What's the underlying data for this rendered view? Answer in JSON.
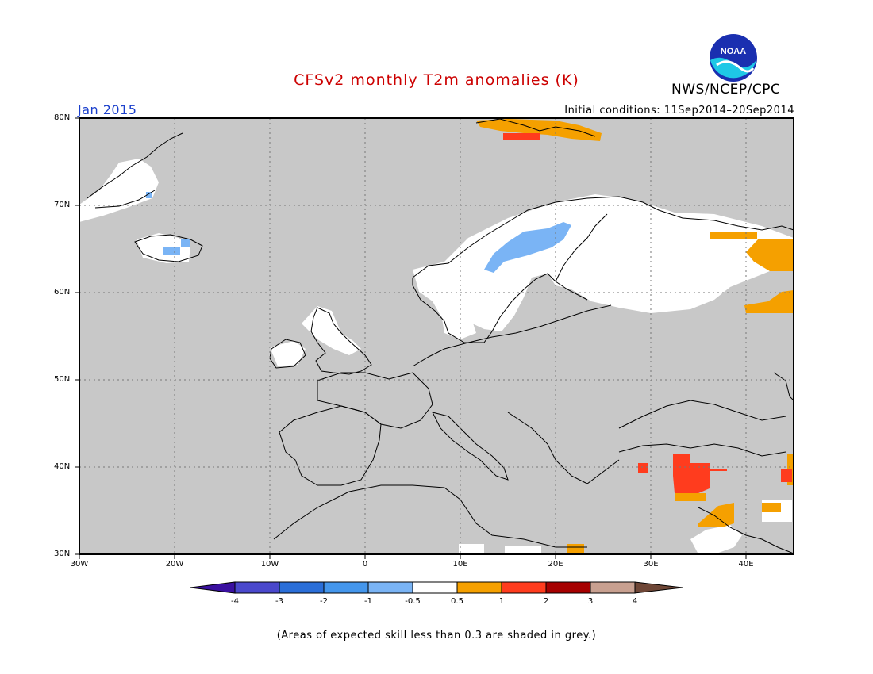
{
  "title": "CFSv2 monthly T2m anomalies (K)",
  "month": "Jan 2015",
  "initial_conditions": "Initial conditions: 11Sep2014–20Sep2014",
  "agency": "NWS/NCEP/CPC",
  "logo_text": "NOAA",
  "footnote": "(Areas of expected skill less than 0.3 are shaded in grey.)",
  "colors": {
    "title": "#cc0000",
    "month": "#1a3fcc",
    "grey_mask": "#c8c8c8",
    "land_outline": "#000000"
  },
  "map": {
    "region": "Europe",
    "lon_range": [
      -30,
      45
    ],
    "lat_range": [
      30,
      80
    ],
    "lat_ticks": [
      "80N",
      "70N",
      "60N",
      "50N",
      "40N",
      "30N"
    ],
    "lon_ticks": [
      "30W",
      "20W",
      "10W",
      "0",
      "10E",
      "20E",
      "30E",
      "40E"
    ],
    "anomaly_regions": [
      {
        "name": "Scandinavia / NW Russia",
        "category": "-0.5 to 0.5",
        "color": "#ffffff"
      },
      {
        "name": "Central Sweden",
        "category": "-1 to -0.5",
        "color": "#7ab4f5"
      },
      {
        "name": "Iceland",
        "category": "-1 to -0.5",
        "color": "#7ab4f5"
      },
      {
        "name": "Svalbard",
        "category": "0.5 to 1",
        "color": "#f5a000"
      },
      {
        "name": "NW Russia (east)",
        "category": "0.5 to 1",
        "color": "#f5a000"
      },
      {
        "name": "Eastern Turkey",
        "category": "1 to 2",
        "color": "#ff3c1e"
      }
    ]
  },
  "colorbar": {
    "labels": [
      "-4",
      "-3",
      "-2",
      "-1",
      "-0.5",
      "0.5",
      "1",
      "2",
      "3",
      "4"
    ],
    "colors": [
      "#3a10a0",
      "#4a48cc",
      "#2a6ed8",
      "#4496ec",
      "#7ab4f5",
      "#ffffff",
      "#f5a000",
      "#ff3c1e",
      "#a60000",
      "#c8a090",
      "#6e4636"
    ]
  }
}
